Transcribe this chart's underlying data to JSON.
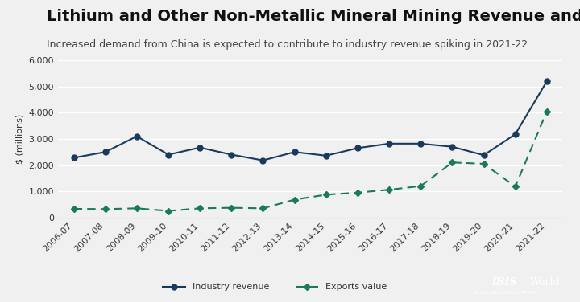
{
  "title": "Lithium and Other Non-Metallic Mineral Mining Revenue and Exports",
  "subtitle": "Increased demand from China is expected to contribute to industry revenue spiking in 2021-22",
  "ylabel": "$ (millions)",
  "background_color": "#f0f0f0",
  "plot_bg_color": "#f0f0f0",
  "categories": [
    "2006-07",
    "2007-08",
    "2008-09",
    "2009-10",
    "2010-11",
    "2011-12",
    "2012-13",
    "2013-14",
    "2014-15",
    "2015-16",
    "2016-17",
    "2017-18",
    "2018-19",
    "2019-20",
    "2020-21",
    "2021-22"
  ],
  "industry_revenue": [
    2280,
    2500,
    3100,
    2400,
    2670,
    2400,
    2180,
    2500,
    2360,
    2650,
    2820,
    2820,
    2700,
    2380,
    3180,
    5200
  ],
  "exports_value": [
    330,
    320,
    350,
    250,
    350,
    370,
    350,
    680,
    870,
    950,
    1060,
    1200,
    2100,
    2050,
    1180,
    4050
  ],
  "revenue_color": "#1a3a5c",
  "exports_color": "#1a7a5c",
  "ylim": [
    0,
    6000
  ],
  "yticks": [
    0,
    1000,
    2000,
    3000,
    4000,
    5000,
    6000
  ],
  "legend_revenue": "Industry revenue",
  "legend_exports": "Exports value",
  "title_fontsize": 14,
  "subtitle_fontsize": 9,
  "axis_fontsize": 8,
  "legend_fontsize": 8
}
